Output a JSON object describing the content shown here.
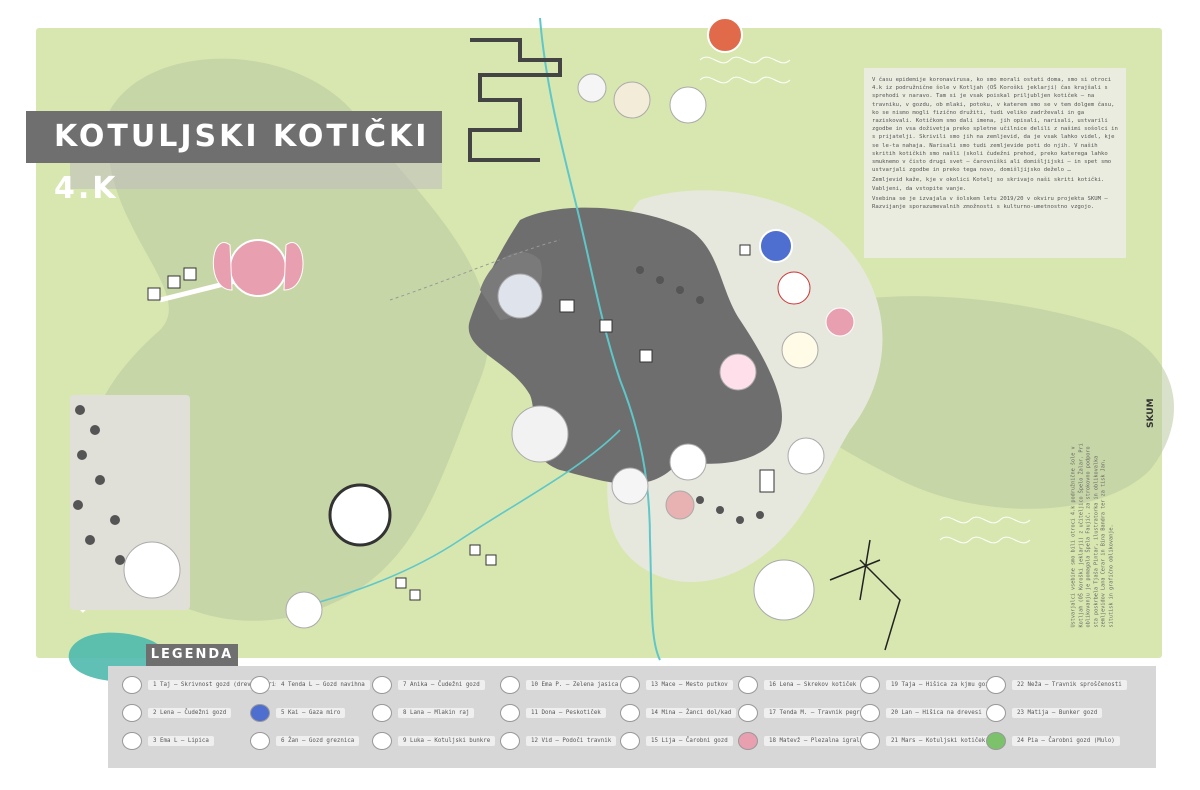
{
  "title": "KOTULJSKI KOTIČKI 4.K",
  "info": {
    "paragraphs": [
      "V času epidemije koronavirusa, ko smo morali ostati doma, smo si otroci 4.k iz podružnične šole v Kotljah (OŠ Koroški jeklarji) čas krajšali s sprehodi v naravo. Tam si je vsak poiskal priljubljen kotiček – na travniku, v gozdu, ob mlaki, potoku, v katerem smo se v tem dolgem času, ko se nismo mogli fizično družiti, tudi veliko zadrževali in ga raziskovali. Kotičkom smo dali imena, jih opisali, narisali, ustvarili zgodbe in vsa doživetja preko spletne učilnice delili z našimi sošolci in s prijatelji. Skrivili smo jih na zemljevid, da je vsak lahko videl, kje se le-ta nahaja. Narisali smo tudi zemljevide poti do njih. V naših skritih kotičkih smo našli (skoli čudežni prehod, preko katerega lahko smuknemo v čisto drugi svet – čarovniški ali domišljijski – in spet smo ustvarjali zgodbe in preko tega novo, domišljijsko deželo …",
      "Zemljevid kaže, kje v okolici Kotelj so skrivajo naši skriti kotički. Vabljeni, da vstopite vanje.",
      "Vsebina se je izvajala v šolskem letu 2019/20 v okviru projekta SKUM – Razvijanje sporazumevalnih zmožnosti s kulturno-umetnostno vzgojo."
    ]
  },
  "side_text": "Ustvarjalci vsebine smo bili otroci 4.k podružnične šole v Kotljah (OŠ Koroški jeklarji) z učiteljico Špelo Žalar. Pri oblikovanju je pomagala Špela Faujić, za strokovno podporo sta poskrbela Tjaša Pintar, ilustratorka in oblikovalka zemljevidov Lana Cerar in Bina Bandra ter za tisk Jan, situtisk in grafično oblikovanje.",
  "legend": {
    "title": "LEGENDA",
    "items": [
      {
        "label": "1 Taj – Skrivnost gozd (drevesna riša)"
      },
      {
        "label": "2 Lena – Čudežni gozd"
      },
      {
        "label": "3 Ema L – Lipica"
      },
      {
        "label": "4 Tenda L – Gozd navihna"
      },
      {
        "label": "5 Kai – Gaza miro"
      },
      {
        "label": "6 Žan – Gozd greznica"
      },
      {
        "label": "7 Anika – Čudežni gozd"
      },
      {
        "label": "8 Lana – Mlakin raj"
      },
      {
        "label": "9 Luka – Kotuljski bunkre"
      },
      {
        "label": "10 Ema P. – Zelena jasica"
      },
      {
        "label": "11 Dona – Peskotiček"
      },
      {
        "label": "12 Vid – Podoči travnik"
      },
      {
        "label": "13 Mace – Mesto putkov"
      },
      {
        "label": "14 Mina – Žanci dol/kad"
      },
      {
        "label": "15 Lija – Čarobni gozd"
      },
      {
        "label": "16 Lena – Skrekov kotiček"
      },
      {
        "label": "17 Tenda M. – Travnik pegrav"
      },
      {
        "label": "18 Matevž – Plezalna igralnica"
      },
      {
        "label": "19 Taja – Hišica za kjmu gozda"
      },
      {
        "label": "20 Lan – Hišica na drevesi"
      },
      {
        "label": "21 Mars – Kotuljski kotiček"
      },
      {
        "label": "22 Neža – Travnik sproščenosti"
      },
      {
        "label": "23 Matija – Bunker gozd"
      },
      {
        "label": "24 Pia – Čarobni gozd (Mulo)"
      }
    ]
  },
  "logos": {
    "skum": "SKUM"
  },
  "colors": {
    "background": "#d8e7b0",
    "dark_area": "#6e6e6e",
    "light_area": "#e9ecdf",
    "river": "#5fc7c9",
    "legend": "#d7d7d7",
    "teal_accent": "#4fb9ad"
  }
}
